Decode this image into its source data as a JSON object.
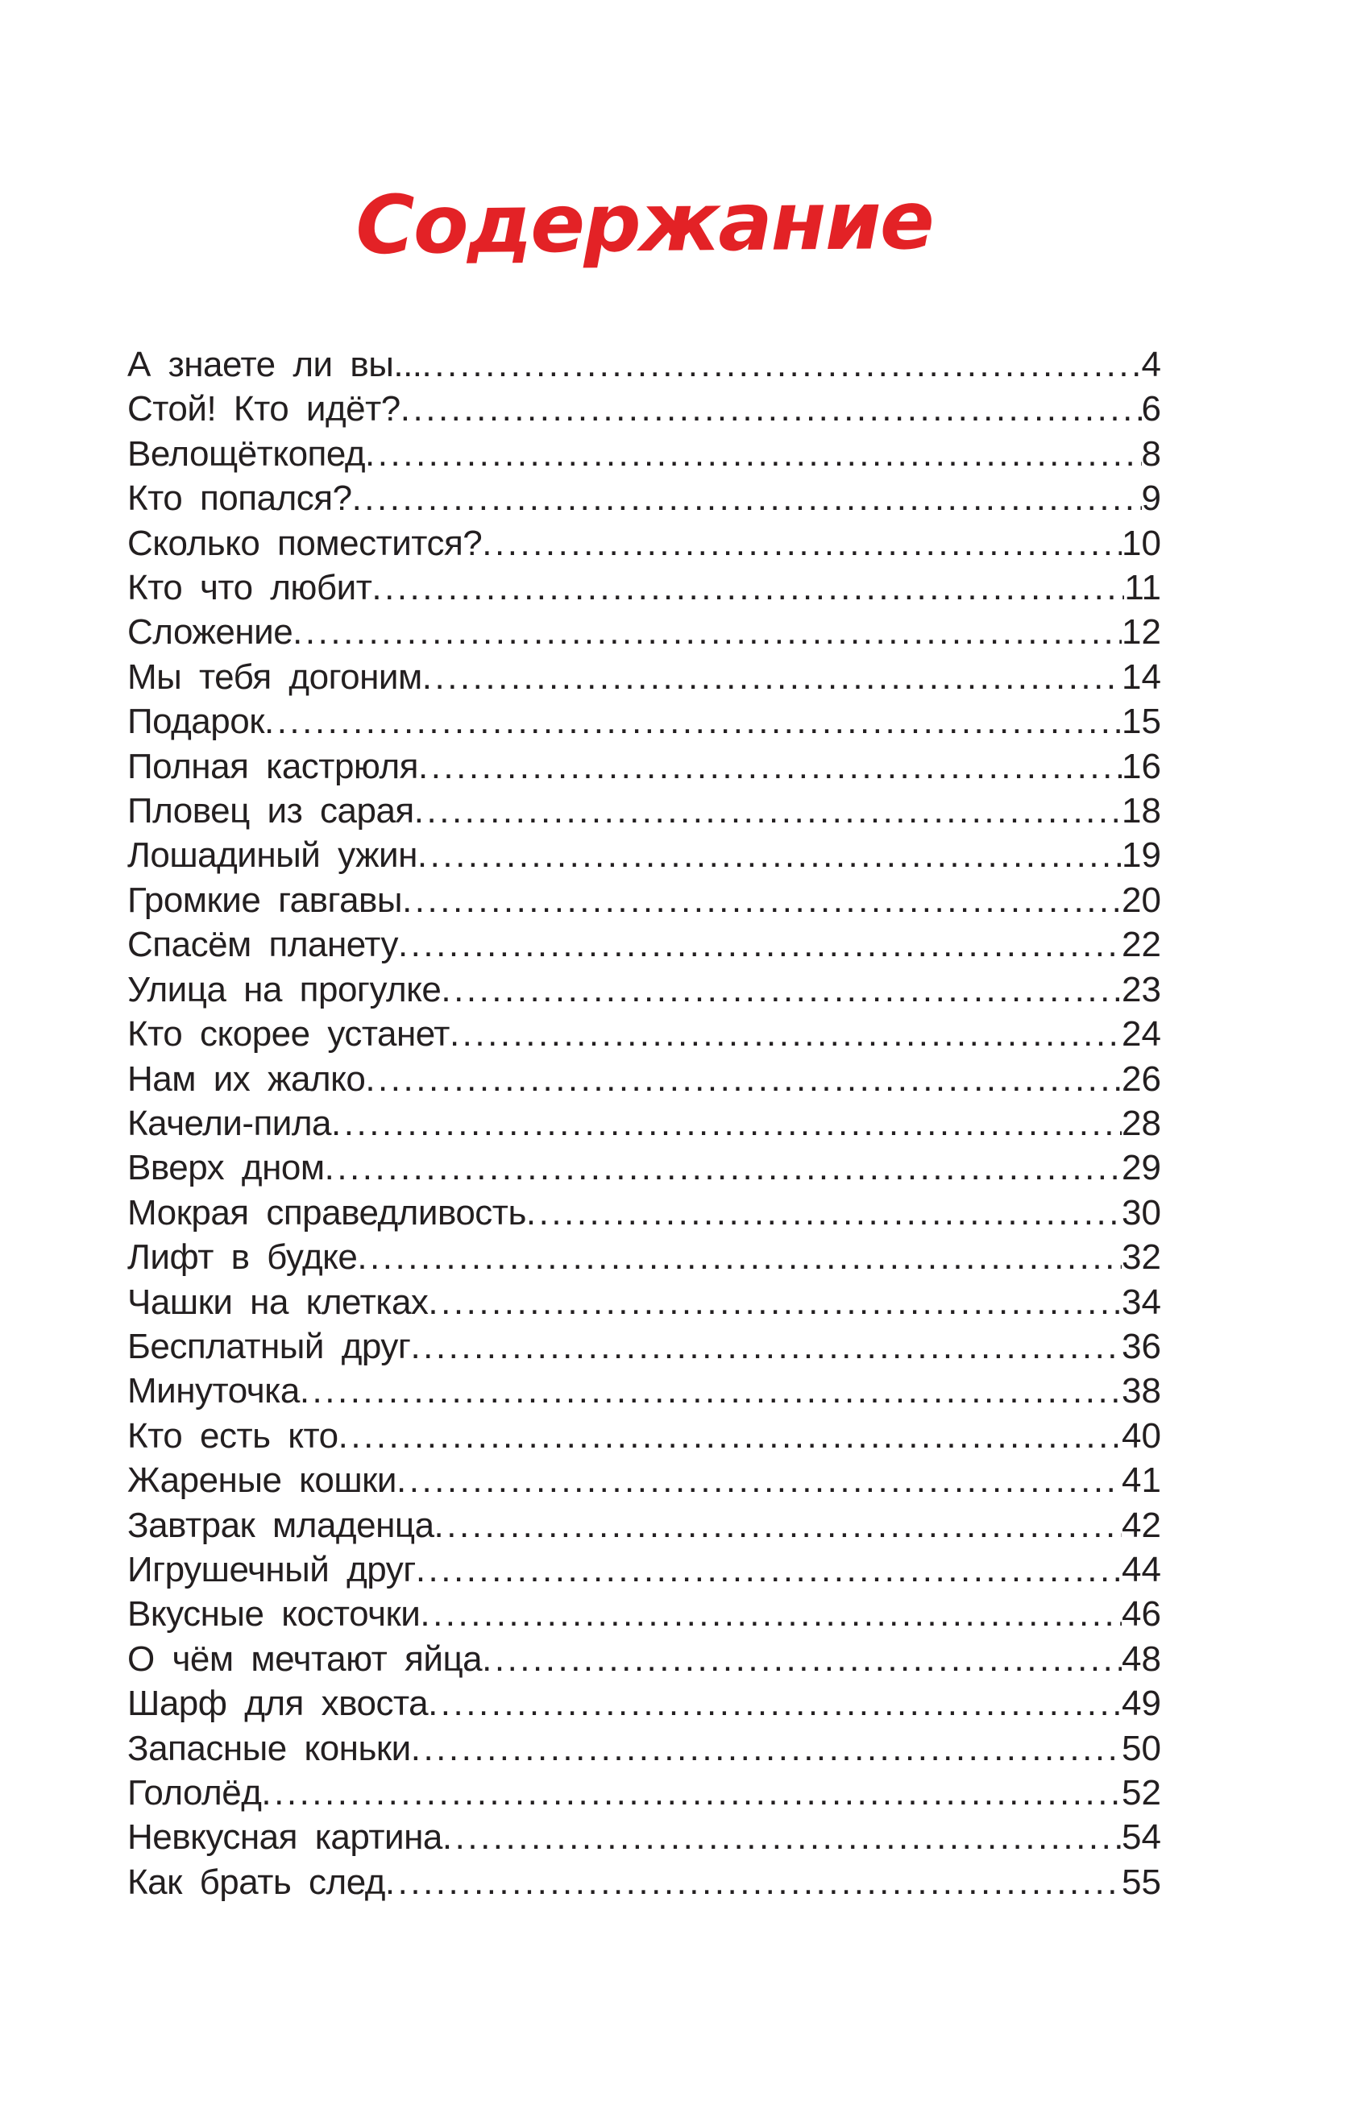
{
  "page_title": "Содержание",
  "colors": {
    "title_red": "#e32226",
    "text": "#231f20",
    "background": "#ffffff"
  },
  "toc": {
    "entries": [
      {
        "title": "А знаете ли вы... ",
        "page": "4"
      },
      {
        "title": "Стой! Кто идёт? ",
        "page": "6"
      },
      {
        "title": "Велощёткопед",
        "page": "8"
      },
      {
        "title": "Кто попался? ",
        "page": "9"
      },
      {
        "title": "Сколько поместится? ",
        "page": "10"
      },
      {
        "title": "Кто что любит",
        "page": "11"
      },
      {
        "title": "Сложение  ",
        "page": "12"
      },
      {
        "title": "Мы тебя догоним ",
        "page": "14"
      },
      {
        "title": "Подарок ",
        "page": "15"
      },
      {
        "title": "Полная кастрюля ",
        "page": "16"
      },
      {
        "title": "Пловец из сарая ",
        "page": "18"
      },
      {
        "title": "Лошадиный ужин",
        "page": "19"
      },
      {
        "title": "Громкие гавгавы  ",
        "page": "20"
      },
      {
        "title": "Спасём планету",
        "page": "22"
      },
      {
        "title": "Улица на прогулке ",
        "page": "23"
      },
      {
        "title": "Кто скорее устанет ",
        "page": "24"
      },
      {
        "title": "Нам их жалко ",
        "page": "26"
      },
      {
        "title": "Качели-пила",
        "page": "28"
      },
      {
        "title": "Вверх дном",
        "page": "29"
      },
      {
        "title": "Мокрая справедливость ",
        "page": "30"
      },
      {
        "title": "Лифт в будке",
        "page": "32"
      },
      {
        "title": "Чашки на клетках ",
        "page": "34"
      },
      {
        "title": "Бесплатный друг  ",
        "page": "36"
      },
      {
        "title": "Минуточка",
        "page": "38"
      },
      {
        "title": "Кто есть кто ",
        "page": "40"
      },
      {
        "title": "Жареные кошки ",
        "page": "41"
      },
      {
        "title": "Завтрак младенца ",
        "page": "42"
      },
      {
        "title": "Игрушечный друг",
        "page": "44"
      },
      {
        "title": "Вкусные косточки ",
        "page": "46"
      },
      {
        "title": "О чём мечтают яйца ",
        "page": "48"
      },
      {
        "title": "Шарф для хвоста ",
        "page": "49"
      },
      {
        "title": "Запасные коньки ",
        "page": "50"
      },
      {
        "title": "Гололёд",
        "page": "52"
      },
      {
        "title": "Невкусная картина ",
        "page": "54"
      },
      {
        "title": "Как брать след",
        "page": "55"
      }
    ]
  }
}
